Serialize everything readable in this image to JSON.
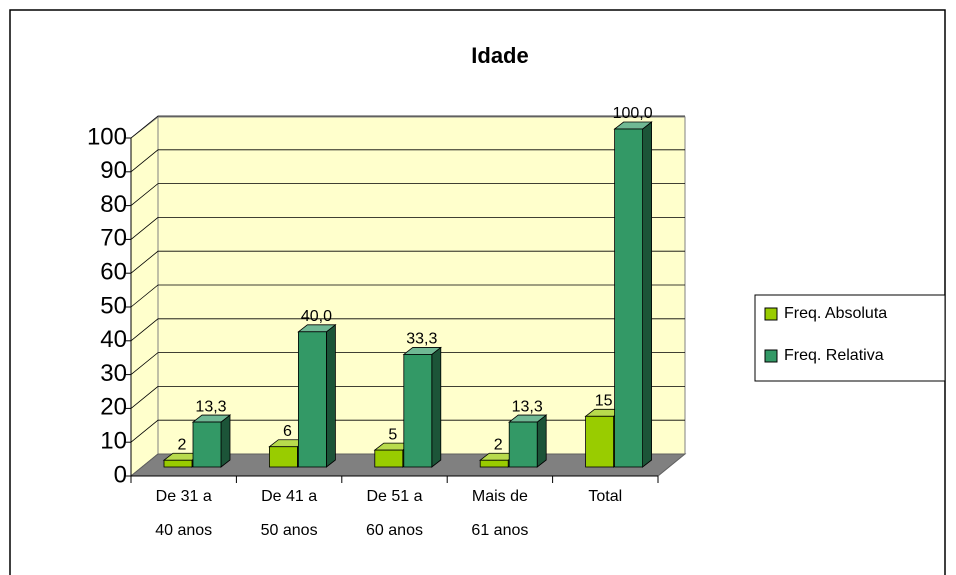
{
  "chart_data": {
    "type": "bar",
    "title": "Idade",
    "categories": [
      [
        "De 31 a",
        "40 anos"
      ],
      [
        "De 41 a",
        "50 anos"
      ],
      [
        "De 51  a",
        "60 anos"
      ],
      [
        "Mais de",
        "61 anos"
      ],
      [
        "Total"
      ]
    ],
    "series": [
      {
        "name": "Freq. Absoluta",
        "color": "#99cc00",
        "values": [
          2,
          6,
          5,
          2,
          15
        ]
      },
      {
        "name": "Freq. Relativa",
        "color": "#339966",
        "values": [
          13.3,
          40.0,
          33.3,
          13.3,
          100.0
        ],
        "value_labels": [
          "13,3",
          "40,0",
          "33,3",
          "13,3",
          "100,0"
        ]
      }
    ],
    "ylim": [
      0,
      100
    ],
    "yticks": [
      0,
      10,
      20,
      30,
      40,
      50,
      60,
      70,
      80,
      90,
      100
    ],
    "grid": true,
    "legend": "right"
  }
}
